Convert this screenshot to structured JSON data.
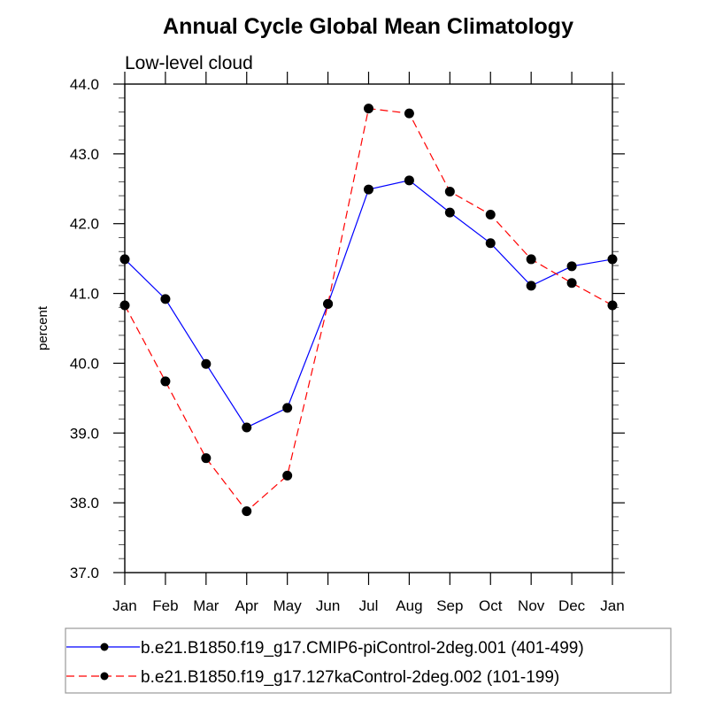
{
  "chart_data": {
    "type": "line",
    "title": "Annual Cycle Global Mean Climatology",
    "subtitle": "Low-level cloud",
    "xlabel": "",
    "ylabel": "percent",
    "categories": [
      "Jan",
      "Feb",
      "Mar",
      "Apr",
      "May",
      "Jun",
      "Jul",
      "Aug",
      "Sep",
      "Oct",
      "Nov",
      "Dec",
      "Jan"
    ],
    "ylim": [
      37.0,
      44.0
    ],
    "yticks": [
      "37.0",
      "38.0",
      "39.0",
      "40.0",
      "41.0",
      "42.0",
      "43.0",
      "44.0"
    ],
    "y_minor_step": 0.2,
    "grid": false,
    "legend_position": "bottom",
    "series": [
      {
        "name": "b.e21.B1850.f19_g17.CMIP6-piControl-2deg.001 (401-499)",
        "color": "#0000ff",
        "line_style": "solid",
        "marker": "filled-circle",
        "values": [
          41.49,
          40.92,
          39.99,
          39.08,
          39.36,
          40.85,
          42.49,
          42.62,
          42.16,
          41.72,
          41.11,
          41.39,
          41.49
        ]
      },
      {
        "name": "b.e21.B1850.f19_g17.127kaControl-2deg.002 (101-199)",
        "color": "#ff0000",
        "line_style": "dashed",
        "marker": "filled-circle",
        "values": [
          40.83,
          39.74,
          38.64,
          37.88,
          38.39,
          40.85,
          43.65,
          43.58,
          42.46,
          42.13,
          41.49,
          41.15,
          40.83
        ]
      }
    ]
  }
}
